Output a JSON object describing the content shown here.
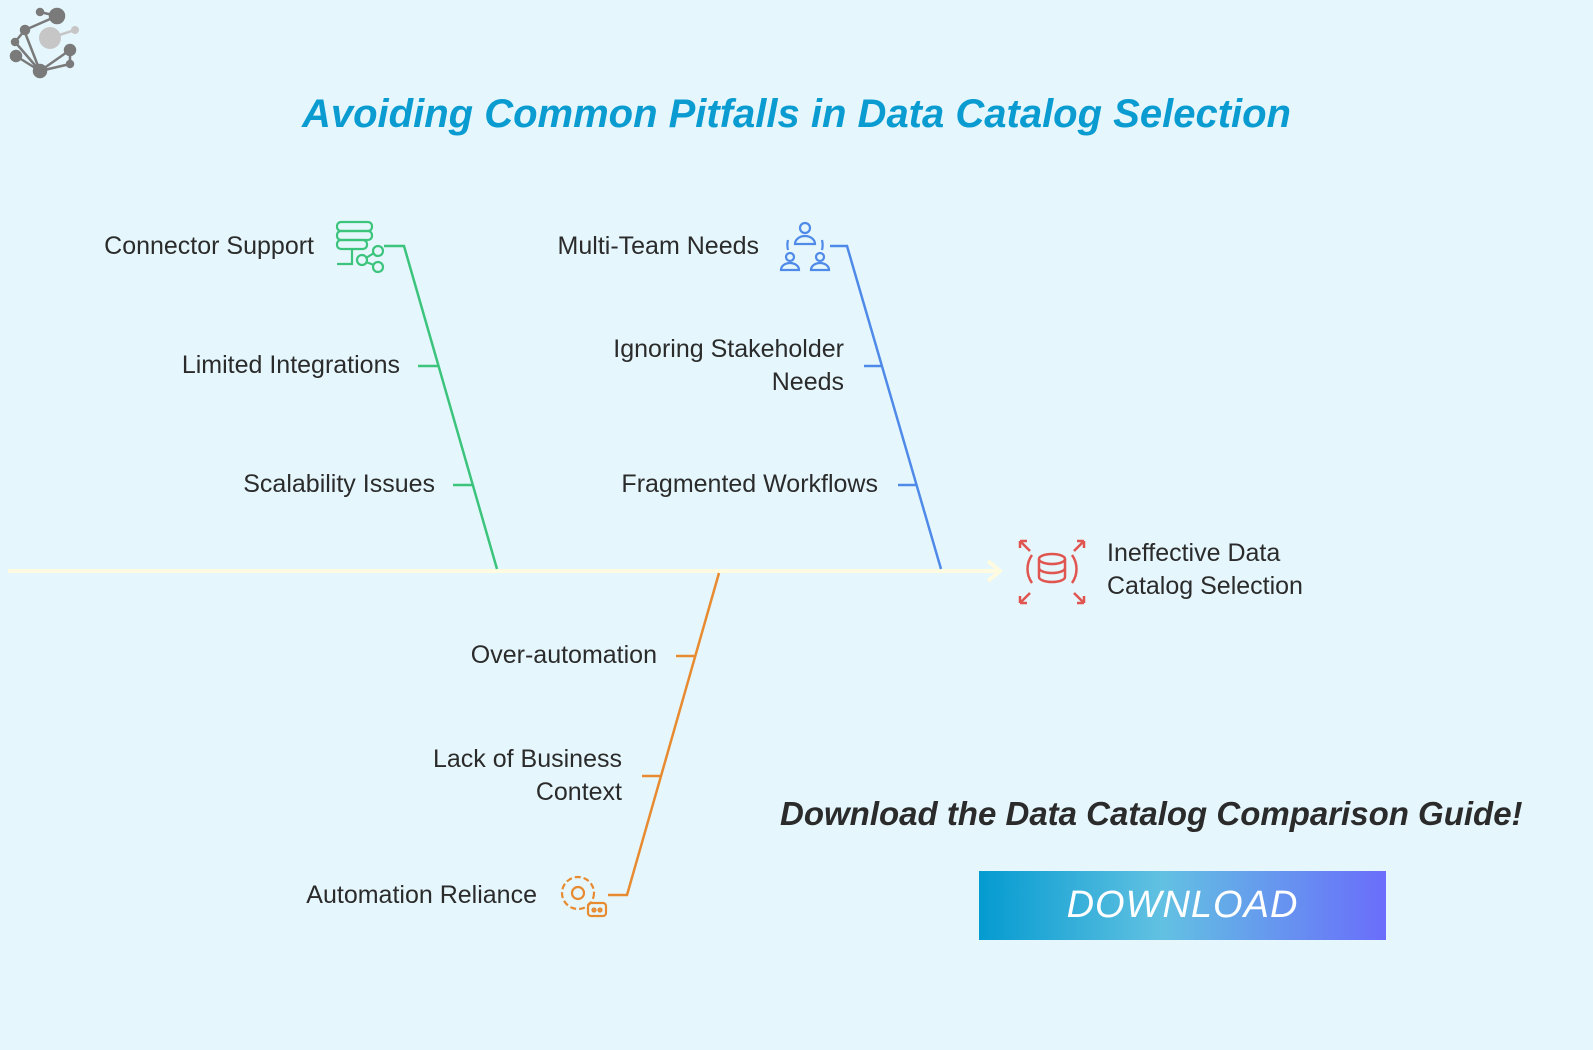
{
  "title": "Avoiding Common Pitfalls in Data Catalog Selection",
  "effect": {
    "label": "Ineffective Data Catalog Selection",
    "icon": "database-expand-icon",
    "color": "#e0554f"
  },
  "branches": [
    {
      "name": "Connector Support",
      "icon": "server-share-icon",
      "color": "#3cc47c",
      "causes": [
        "Limited Integrations",
        "Scalability Issues"
      ]
    },
    {
      "name": "Multi-Team Needs",
      "icon": "team-users-icon",
      "color": "#4f8ae8",
      "causes": [
        "Ignoring Stakeholder Needs",
        "Fragmented Workflows"
      ]
    },
    {
      "name": "Automation Reliance",
      "icon": "gear-robot-icon",
      "color": "#e88a2f",
      "causes": [
        "Over-automation",
        "Lack of Business Context"
      ]
    }
  ],
  "spine_color": "#fffbe0",
  "cta": {
    "text": "Download the Data Catalog Comparison Guide!",
    "button_label": "DOWNLOAD"
  },
  "logo": "network-c-logo"
}
